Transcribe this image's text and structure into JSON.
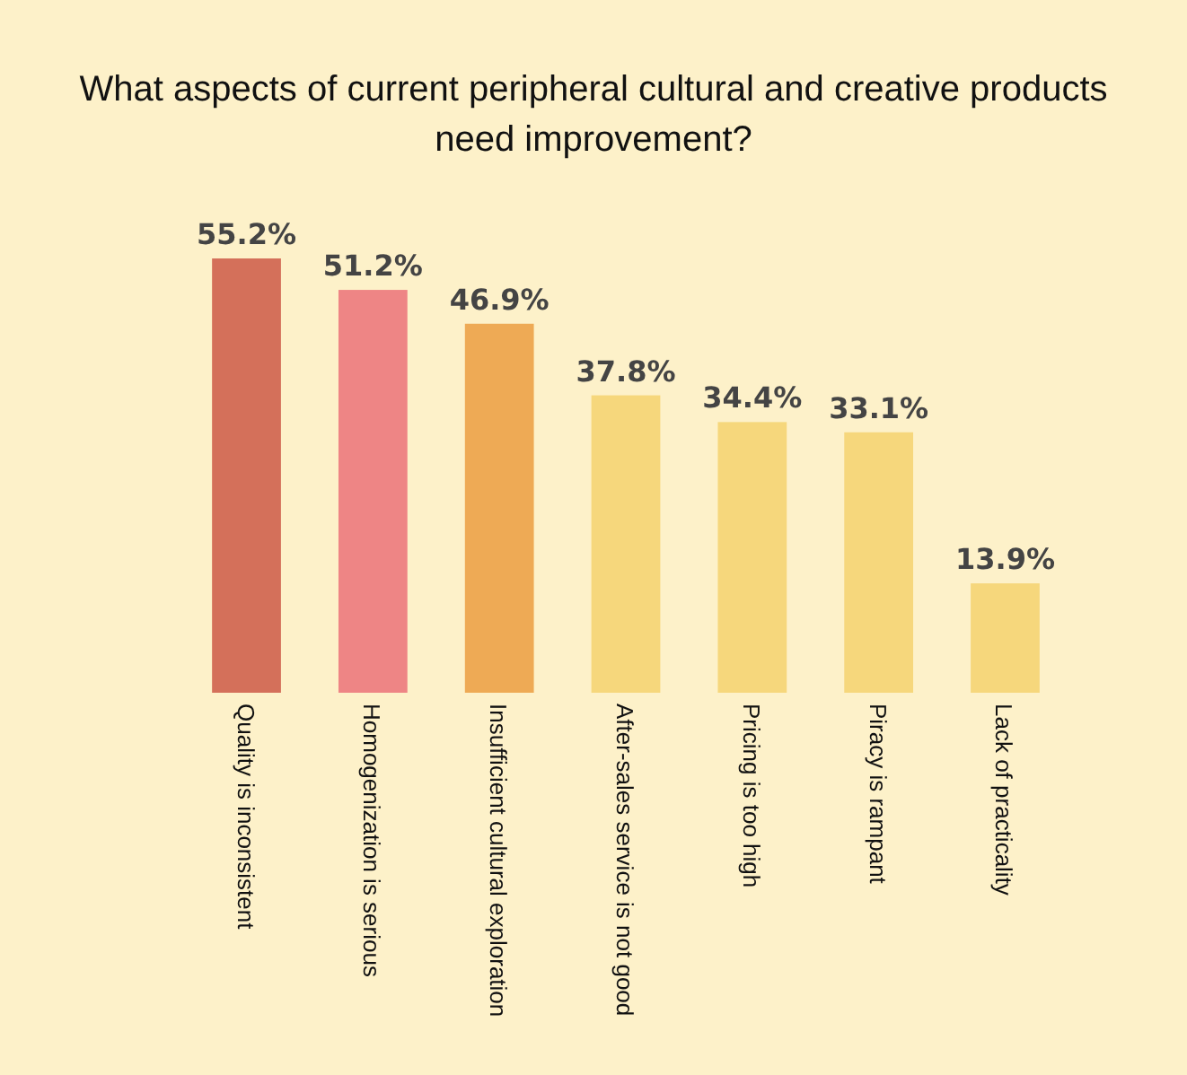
{
  "chart_data": {
    "type": "bar",
    "title": "What aspects of current peripheral cultural and creative products need improvement?",
    "categories": [
      "Quality is inconsistent",
      "Homogenization is serious",
      "Insufficient cultural exploration",
      "After-sales service is not good",
      "Pricing is too high",
      "Piracy is rampant",
      "Lack of practicality"
    ],
    "values": [
      55.2,
      51.2,
      46.9,
      37.8,
      34.4,
      33.1,
      13.9
    ],
    "colors": [
      "#d4705a",
      "#ee8585",
      "#eeaa55",
      "#f6d77c",
      "#f6d77c",
      "#f6d77c",
      "#f6d77c"
    ],
    "value_labels": [
      "55.2%",
      "51.2%",
      "46.9%",
      "37.8%",
      "34.4%",
      "33.1%",
      "13.9%"
    ]
  }
}
